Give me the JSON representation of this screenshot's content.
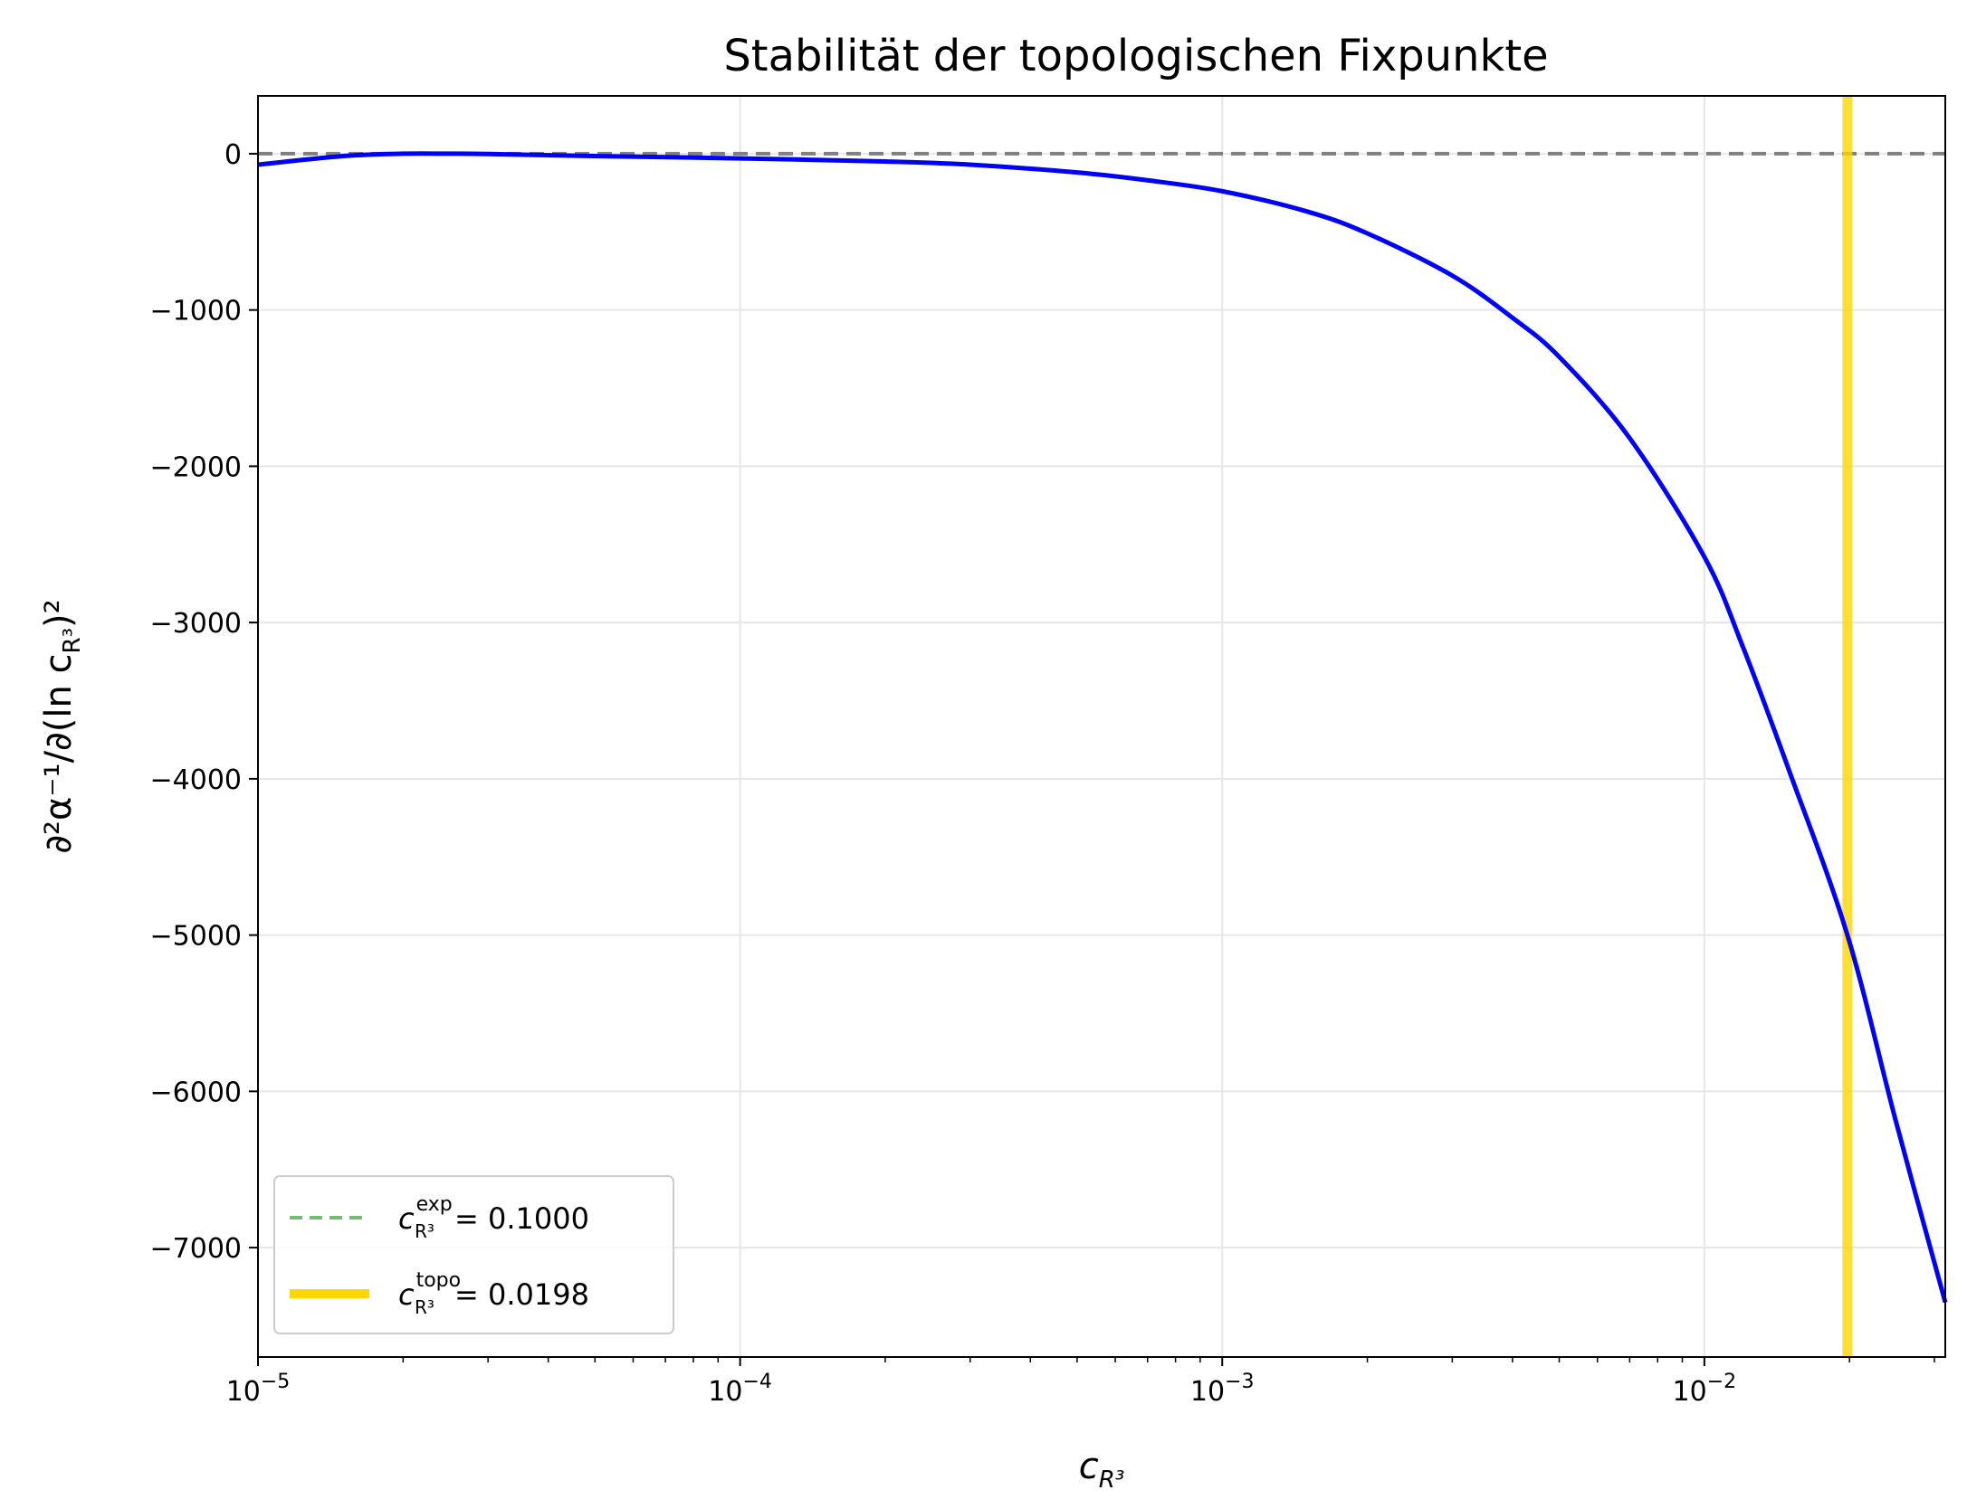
{
  "chart_data": {
    "type": "line",
    "title": "Stabilität der topologischen Fixpunkte",
    "xlabel": {
      "base": "c",
      "sub": "R³"
    },
    "ylabel": {
      "prefix": "∂²α⁻¹/∂(ln c",
      "sub": "R³",
      "suffix": ")²"
    },
    "x_scale": "log",
    "xlim": [
      1e-05,
      0.0316
    ],
    "ylim": [
      -7700,
      370
    ],
    "x_ticks": [
      {
        "value": 1e-05,
        "label_base": "10",
        "label_exp": "−5"
      },
      {
        "value": 0.0001,
        "label_base": "10",
        "label_exp": "−4"
      },
      {
        "value": 0.001,
        "label_base": "10",
        "label_exp": "−3"
      },
      {
        "value": 0.01,
        "label_base": "10",
        "label_exp": "−2"
      }
    ],
    "y_ticks": [
      {
        "value": 0,
        "label": "0"
      },
      {
        "value": -1000,
        "label": "−1000"
      },
      {
        "value": -2000,
        "label": "−2000"
      },
      {
        "value": -3000,
        "label": "−3000"
      },
      {
        "value": -4000,
        "label": "−4000"
      },
      {
        "value": -5000,
        "label": "−5000"
      },
      {
        "value": -6000,
        "label": "−6000"
      },
      {
        "value": -7000,
        "label": "−7000"
      }
    ],
    "grid": true,
    "legend_position": "lower-left",
    "series": [
      {
        "style": "solid",
        "color": "#0000ff",
        "points": [
          [
            1e-05,
            -70
          ],
          [
            1.5e-05,
            -15
          ],
          [
            2e-05,
            0
          ],
          [
            2.5e-05,
            0
          ],
          [
            3e-05,
            -2
          ],
          [
            5e-05,
            -15
          ],
          [
            0.0001,
            -30
          ],
          [
            0.0002,
            -50
          ],
          [
            0.0003,
            -70
          ],
          [
            0.0005,
            -120
          ],
          [
            0.0007,
            -170
          ],
          [
            0.001,
            -240
          ],
          [
            0.0015,
            -370
          ],
          [
            0.002,
            -510
          ],
          [
            0.003,
            -780
          ],
          [
            0.004,
            -1050
          ],
          [
            0.005,
            -1300
          ],
          [
            0.007,
            -1820
          ],
          [
            0.01,
            -2580
          ],
          [
            0.012,
            -3150
          ],
          [
            0.015,
            -3950
          ],
          [
            0.0198,
            -5000
          ],
          [
            0.025,
            -6200
          ],
          [
            0.0316,
            -7350
          ]
        ]
      }
    ],
    "reference_lines": [
      {
        "orientation": "horizontal",
        "value": 0,
        "style": "dashed",
        "color": "#808080"
      },
      {
        "orientation": "vertical",
        "value": 0.0198,
        "style": "solid",
        "color": "#ffd700",
        "name": "topo"
      }
    ],
    "legend": [
      {
        "symbol_style": "dashed",
        "color": "#77bb77",
        "base": "c",
        "sup": "exp",
        "sub": "R³",
        "value_text": "= 0.1000"
      },
      {
        "symbol_style": "solid-thick",
        "color": "#ffd700",
        "base": "c",
        "sup": "topo",
        "sub": "R³",
        "value_text": "= 0.0198"
      }
    ]
  }
}
